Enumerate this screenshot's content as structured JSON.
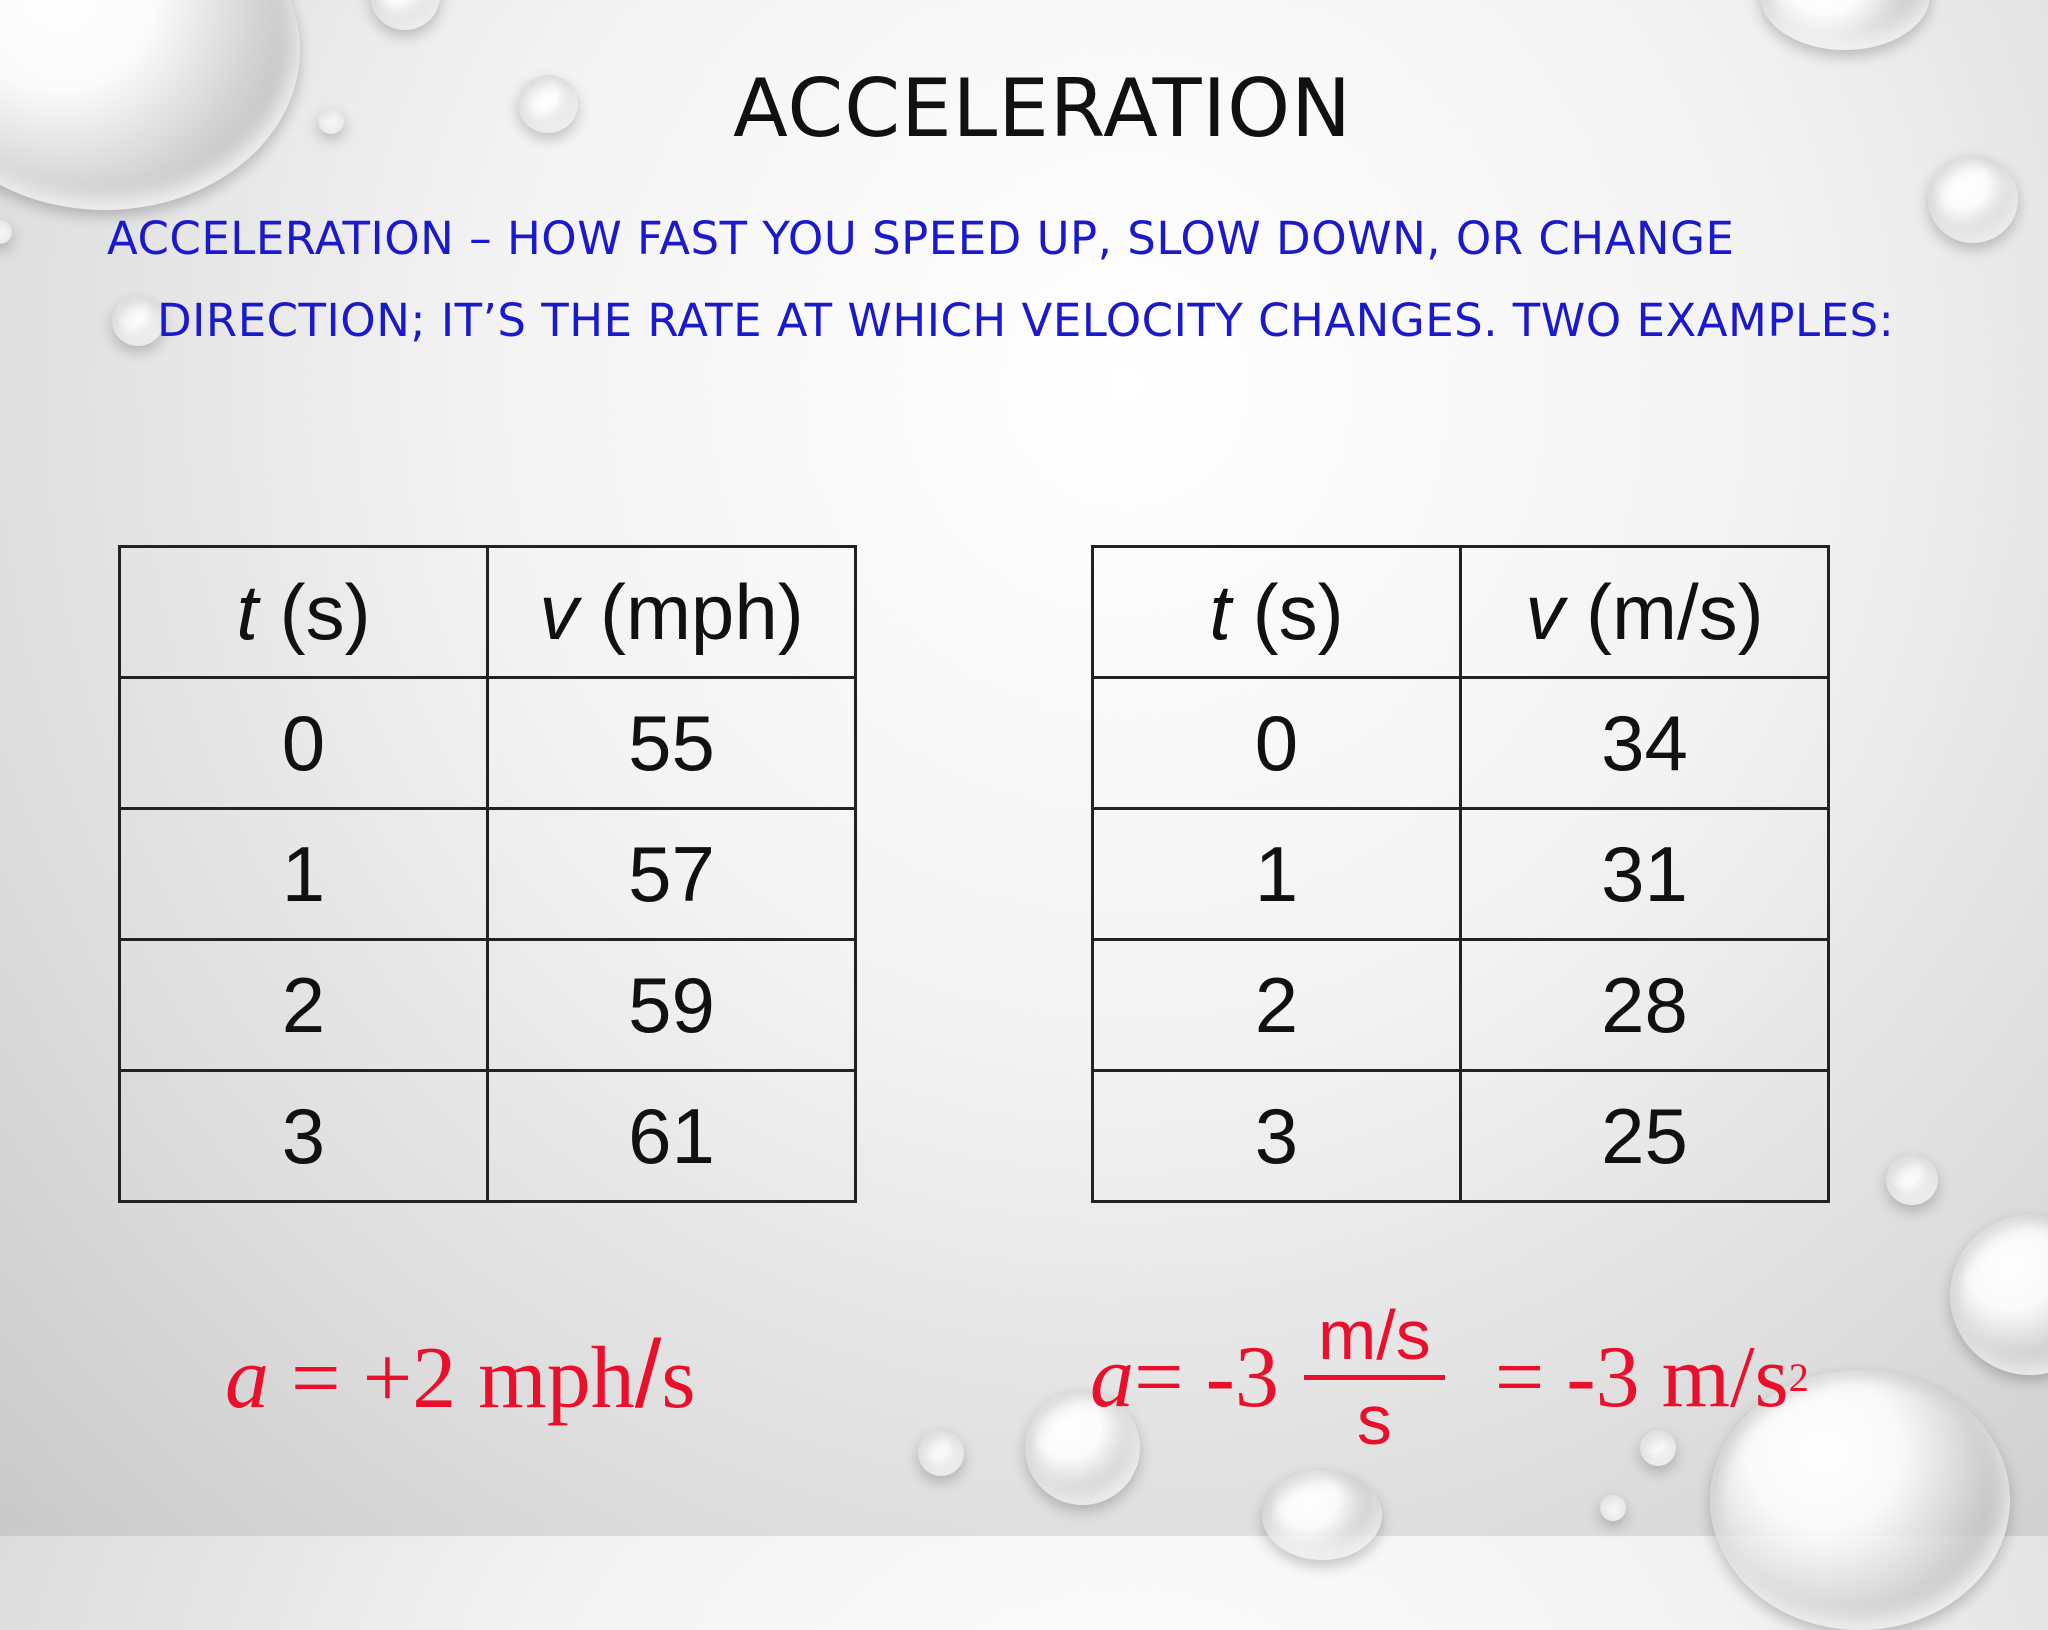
{
  "slide": {
    "title": "ACCELERATION",
    "description": "ACCELERATION – HOW FAST YOU SPEED UP, SLOW DOWN, OR CHANGE DIRECTION; IT’S THE RATE AT WHICH VELOCITY CHANGES. TWO EXAMPLES:"
  },
  "tables": {
    "left": {
      "headers": [
        {
          "var": "t",
          "unit": " (s)"
        },
        {
          "var": "v",
          "unit": " (mph)"
        }
      ],
      "rows": [
        [
          "0",
          "55"
        ],
        [
          "1",
          "57"
        ],
        [
          "2",
          "59"
        ],
        [
          "3",
          "61"
        ]
      ]
    },
    "right": {
      "headers": [
        {
          "var": "t",
          "unit": " (s)"
        },
        {
          "var": "v",
          "unit": " (m/s)"
        }
      ],
      "rows": [
        [
          "0",
          "34"
        ],
        [
          "1",
          "31"
        ],
        [
          "2",
          "28"
        ],
        [
          "3",
          "25"
        ]
      ]
    }
  },
  "formulas": {
    "left": {
      "var": "a",
      "value": " = +2 mph",
      "slash": "/",
      "unit": "s"
    },
    "right": {
      "var": "a",
      "value": " = -3",
      "num": "m/s",
      "den": "s",
      "result": "= -3 m/s",
      "exp": "2"
    }
  },
  "colors": {
    "description": "#1a1acc",
    "formula": "#e8102b"
  }
}
